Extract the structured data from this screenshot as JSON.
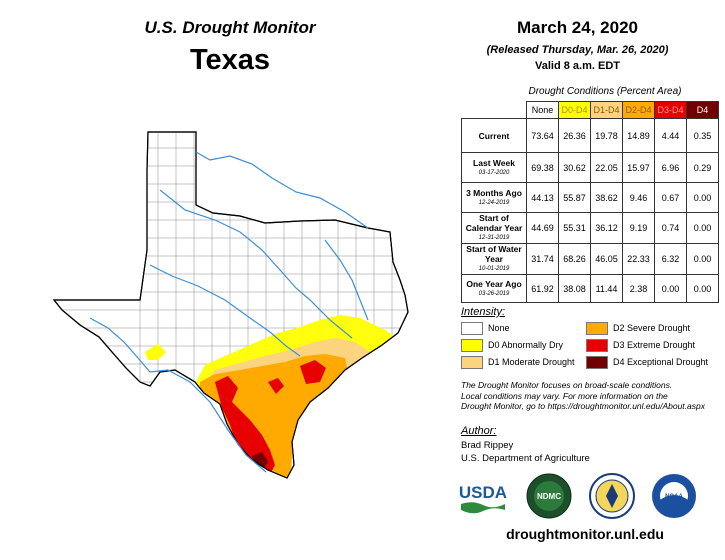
{
  "header": {
    "monitor_title": "U.S. Drought Monitor",
    "state": "Texas",
    "date": "March 24, 2020",
    "released": "(Released Thursday, Mar. 26, 2020)",
    "valid": "Valid 8 a.m. EDT"
  },
  "table": {
    "caption": "Drought Conditions (Percent Area)",
    "columns": [
      "None",
      "D0-D4",
      "D1-D4",
      "D2-D4",
      "D3-D4",
      "D4"
    ],
    "column_colors": [
      "#ffffff",
      "#ffff00",
      "#fcd37f",
      "#ffaa00",
      "#e60000",
      "#730000"
    ],
    "column_text_colors": [
      "#000000",
      "#b38f00",
      "#8a5a00",
      "#8a5a00",
      "#ff2a2a",
      "#ffffff"
    ],
    "rows": [
      {
        "label": "Current",
        "sub": "",
        "values": [
          "73.64",
          "26.36",
          "19.78",
          "14.89",
          "4.44",
          "0.35"
        ]
      },
      {
        "label": "Last Week",
        "sub": "03-17-2020",
        "values": [
          "69.38",
          "30.62",
          "22.05",
          "15.97",
          "6.96",
          "0.29"
        ]
      },
      {
        "label": "3 Months Ago",
        "sub": "12-24-2019",
        "values": [
          "44.13",
          "55.87",
          "38.62",
          "9.46",
          "0.67",
          "0.00"
        ]
      },
      {
        "label": "Start of Calendar Year",
        "sub": "12-31-2019",
        "values": [
          "44.69",
          "55.31",
          "36.12",
          "9.19",
          "0.74",
          "0.00"
        ]
      },
      {
        "label": "Start of Water Year",
        "sub": "10-01-2019",
        "values": [
          "31.74",
          "68.26",
          "46.05",
          "22.33",
          "6.32",
          "0.00"
        ]
      },
      {
        "label": "One Year Ago",
        "sub": "03-26-2019",
        "values": [
          "61.92",
          "38.08",
          "11.44",
          "2.38",
          "0.00",
          "0.00"
        ]
      }
    ]
  },
  "legend": {
    "title": "Intensity:",
    "items": [
      {
        "label": "None",
        "color": "#ffffff"
      },
      {
        "label": "D0 Abnormally Dry",
        "color": "#ffff00"
      },
      {
        "label": "D1 Moderate Drought",
        "color": "#fcd37f"
      },
      {
        "label": "D2 Severe Drought",
        "color": "#ffaa00"
      },
      {
        "label": "D3 Extreme Drought",
        "color": "#e60000"
      },
      {
        "label": "D4 Exceptional Drought",
        "color": "#730000"
      }
    ]
  },
  "note": {
    "line1": "The Drought Monitor focuses on broad-scale conditions.",
    "line2": "Local conditions may vary. For more information on the",
    "line3": "Drought Monitor, go to https://droughtmonitor.unl.edu/About.aspx"
  },
  "author": {
    "title": "Author:",
    "name": "Brad Rippey",
    "org": "U.S. Department of Agriculture"
  },
  "logos": {
    "usda": "USDA",
    "ndmc": "NDMC",
    "noaa": "NOAA"
  },
  "footer": {
    "url": "droughtmonitor.unl.edu"
  }
}
